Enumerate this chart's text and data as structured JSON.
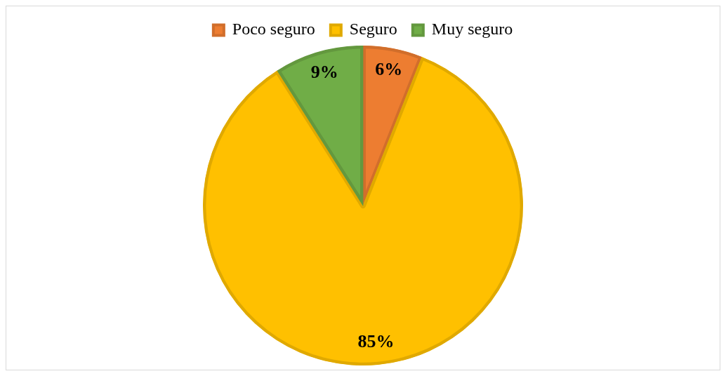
{
  "chart_data": {
    "type": "pie",
    "categories": [
      "Poco seguro",
      "Seguro",
      "Muy seguro"
    ],
    "values": [
      6,
      85,
      9
    ],
    "colors": [
      "#ed7d31",
      "#ffc000",
      "#70ad47"
    ],
    "value_labels": [
      "6%",
      "85%",
      "9%"
    ],
    "legend": "top"
  }
}
